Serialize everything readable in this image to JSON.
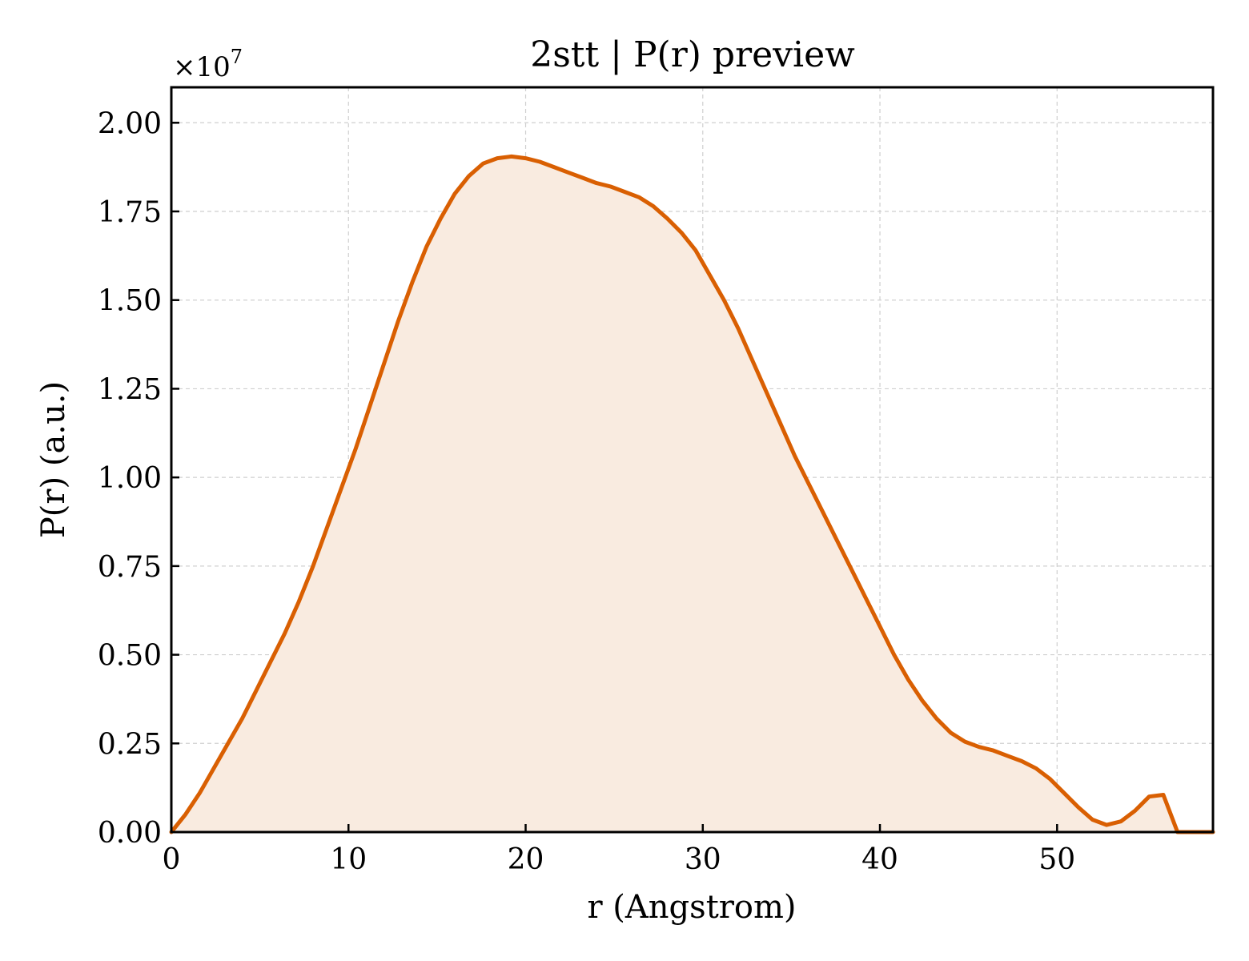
{
  "chart_data": {
    "type": "area",
    "title": "2stt | P(r) preview",
    "xlabel": "r (Angstrom)",
    "ylabel": "P(r) (a.u.)",
    "y_multiplier_label": "×10",
    "y_multiplier_exponent": "7",
    "xlim": [
      0,
      58.8
    ],
    "ylim": [
      0,
      2.1
    ],
    "x_ticks": [
      0,
      10,
      20,
      30,
      40,
      50
    ],
    "x_tick_labels": [
      "0",
      "10",
      "20",
      "30",
      "40",
      "50"
    ],
    "y_ticks": [
      0,
      0.25,
      0.5,
      0.75,
      1.0,
      1.25,
      1.5,
      1.75,
      2.0
    ],
    "y_tick_labels": [
      "0.00",
      "0.25",
      "0.50",
      "0.75",
      "1.00",
      "1.25",
      "1.50",
      "1.75",
      "2.00"
    ],
    "grid": true,
    "colors": {
      "line": "#d95f02",
      "fill": "#f9ebe0"
    },
    "series": [
      {
        "x": [
          0,
          0.8,
          1.6,
          2.4,
          3.2,
          4.0,
          4.8,
          5.6,
          6.4,
          7.2,
          8.0,
          8.8,
          9.6,
          10.4,
          11.2,
          12.0,
          12.8,
          13.6,
          14.4,
          15.2,
          16.0,
          16.8,
          17.6,
          18.4,
          19.2,
          20.0,
          20.8,
          21.6,
          22.4,
          23.2,
          24.0,
          24.8,
          25.6,
          26.4,
          27.2,
          28.0,
          28.8,
          29.6,
          30.4,
          31.2,
          32.0,
          32.8,
          33.6,
          34.4,
          35.2,
          36.0,
          36.8,
          37.6,
          38.4,
          39.2,
          40.0,
          40.8,
          41.6,
          42.4,
          43.2,
          44.0,
          44.8,
          45.6,
          46.4,
          47.2,
          48.0,
          48.8,
          49.6,
          50.4,
          51.2,
          52.0,
          52.8,
          53.6,
          54.4,
          55.2,
          56.0,
          56.8,
          57.6,
          58.8
        ],
        "values": [
          0.0,
          0.05,
          0.11,
          0.18,
          0.25,
          0.32,
          0.4,
          0.48,
          0.56,
          0.65,
          0.75,
          0.86,
          0.97,
          1.08,
          1.2,
          1.32,
          1.44,
          1.55,
          1.65,
          1.73,
          1.8,
          1.85,
          1.885,
          1.9,
          1.905,
          1.9,
          1.89,
          1.875,
          1.86,
          1.845,
          1.83,
          1.82,
          1.805,
          1.79,
          1.765,
          1.73,
          1.69,
          1.64,
          1.57,
          1.5,
          1.42,
          1.33,
          1.24,
          1.15,
          1.06,
          0.98,
          0.9,
          0.82,
          0.74,
          0.66,
          0.58,
          0.5,
          0.43,
          0.37,
          0.32,
          0.28,
          0.255,
          0.24,
          0.23,
          0.215,
          0.2,
          0.18,
          0.15,
          0.11,
          0.07,
          0.035,
          0.02,
          0.03,
          0.06,
          0.1,
          0.105,
          0.0,
          0.0,
          0.0
        ]
      }
    ]
  }
}
